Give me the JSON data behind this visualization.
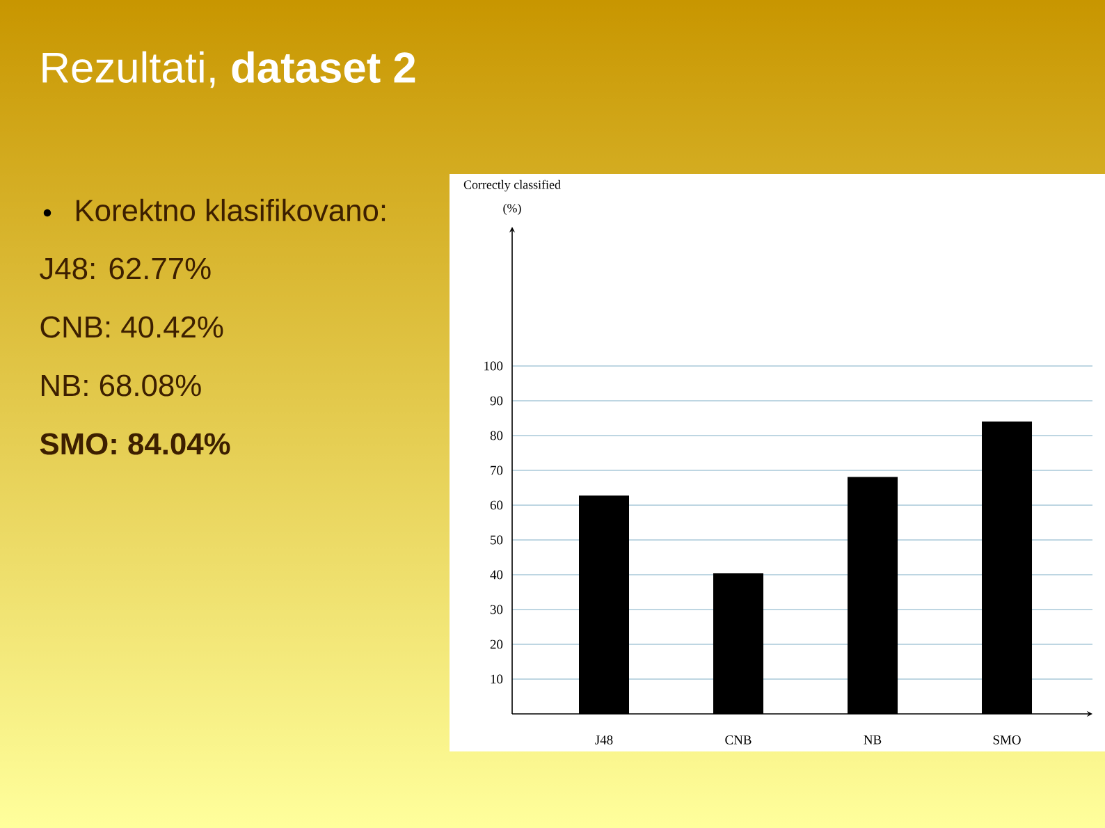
{
  "chart_data": {
    "type": "bar",
    "title": "Rezultati, **dataset 2**",
    "ylabel": "Correctly classified (%)",
    "categories": [
      "J48",
      "CNB",
      "NB",
      "SMO"
    ],
    "values": [
      62.77,
      40.42,
      68.08,
      84.04
    ],
    "color": "#000000",
    "ylim": [
      0,
      140
    ],
    "yticks": [
      10,
      20,
      30,
      40,
      50,
      60,
      70,
      80,
      90,
      100
    ],
    "grid": "y",
    "annotations": [
      "Korektno klasifikovano:",
      "J48: 62.77%",
      "CNB: 40.42%",
      "NB: 68.08%",
      "SMO: 84.04%"
    ]
  }
}
